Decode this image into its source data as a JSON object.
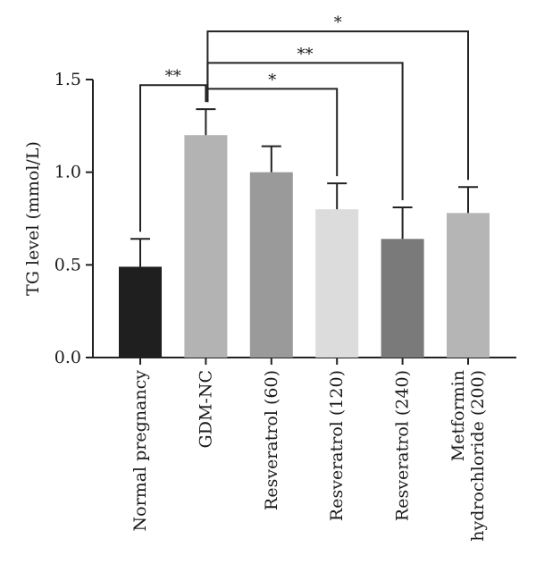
{
  "chart_data": {
    "type": "bar",
    "ylabel": "TG level (mmol/L)",
    "xlabel": "",
    "title": "",
    "ylim": [
      0,
      1.5
    ],
    "yticks": [
      "0.0",
      "0.5",
      "1.0",
      "1.5"
    ],
    "categories": [
      [
        "Normal pregnancy"
      ],
      [
        "GDM-NC"
      ],
      [
        "Resveratrol (60)"
      ],
      [
        "Resveratrol (120)"
      ],
      [
        "Resveratrol (240)"
      ],
      [
        "Metformin",
        "hydrochloride (200)"
      ]
    ],
    "values": [
      0.49,
      1.2,
      1.0,
      0.8,
      0.64,
      0.78
    ],
    "errors": [
      0.15,
      0.14,
      0.14,
      0.14,
      0.17,
      0.14
    ],
    "bar_colors": [
      "#1f1f1f",
      "#b3b3b3",
      "#9a9a9a",
      "#dcdcdc",
      "#7a7a7a",
      "#b5b5b5"
    ],
    "significance": [
      {
        "from": 0,
        "to": 1,
        "label": "**"
      },
      {
        "from": 1,
        "to": 3,
        "label": "*"
      },
      {
        "from": 1,
        "to": 4,
        "label": "**"
      },
      {
        "from": 1,
        "to": 5,
        "label": "*"
      }
    ],
    "grid": false,
    "legend": "none"
  }
}
